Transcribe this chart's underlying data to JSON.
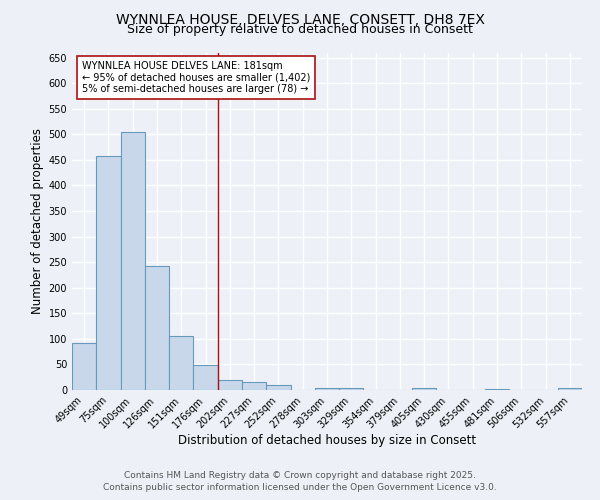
{
  "title_line1": "WYNNLEA HOUSE, DELVES LANE, CONSETT, DH8 7EX",
  "title_line2": "Size of property relative to detached houses in Consett",
  "xlabel": "Distribution of detached houses by size in Consett",
  "ylabel": "Number of detached properties",
  "categories": [
    "49sqm",
    "75sqm",
    "100sqm",
    "126sqm",
    "151sqm",
    "176sqm",
    "202sqm",
    "227sqm",
    "252sqm",
    "278sqm",
    "303sqm",
    "329sqm",
    "354sqm",
    "379sqm",
    "405sqm",
    "430sqm",
    "455sqm",
    "481sqm",
    "506sqm",
    "532sqm",
    "557sqm"
  ],
  "values": [
    91,
    457,
    505,
    242,
    105,
    48,
    20,
    15,
    9,
    0,
    4,
    4,
    0,
    0,
    3,
    0,
    0,
    2,
    0,
    0,
    3
  ],
  "bar_color": "#c8d8ea",
  "bar_edge_color": "#6699bb",
  "vline_x": 5.5,
  "vline_color": "#aa1111",
  "annotation_text": "WYNNLEA HOUSE DELVES LANE: 181sqm\n← 95% of detached houses are smaller (1,402)\n5% of semi-detached houses are larger (78) →",
  "annotation_box_color": "#ffffff",
  "annotation_box_edge": "#aa1111",
  "ylim": [
    0,
    660
  ],
  "yticks": [
    0,
    50,
    100,
    150,
    200,
    250,
    300,
    350,
    400,
    450,
    500,
    550,
    600,
    650
  ],
  "background_color": "#edf1f7",
  "grid_color": "#ffffff",
  "footer_line1": "Contains HM Land Registry data © Crown copyright and database right 2025.",
  "footer_line2": "Contains public sector information licensed under the Open Government Licence v3.0.",
  "title_fontsize": 10,
  "subtitle_fontsize": 9,
  "axis_label_fontsize": 8.5,
  "tick_fontsize": 7,
  "annotation_fontsize": 7,
  "footer_fontsize": 6.5
}
